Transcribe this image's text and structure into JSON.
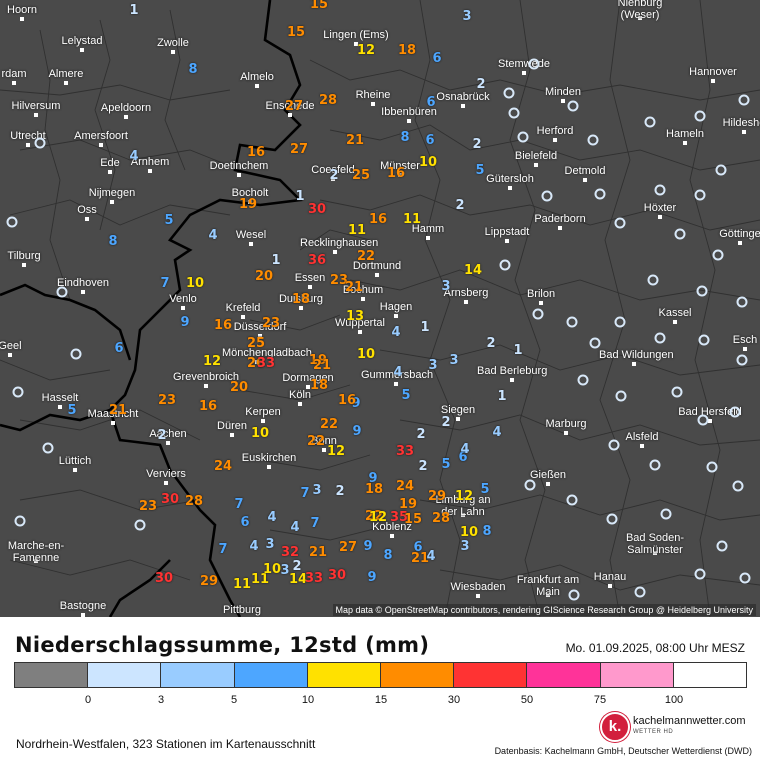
{
  "legend": {
    "title": "Niederschlagssumme, 12std (mm)",
    "date": "Mo. 01.09.2025, 08:00 Uhr MESZ",
    "thresholds": [
      "0",
      "3",
      "5",
      "10",
      "15",
      "30",
      "50",
      "75",
      "100"
    ],
    "colors": [
      "#7f7f7f",
      "#cce5ff",
      "#99ccff",
      "#4da6ff",
      "#ffe100",
      "#ff8c00",
      "#ff3333",
      "#ff3399",
      "#ff99cc",
      "#ffffff"
    ],
    "stations_text": "Nordrhein-Westfalen, 323 Stationen im Kartenausschnitt",
    "source_text": "Datenbasis: Kachelmann GmbH, Deutscher Wetterdienst (DWD)",
    "logo_name": "kachelmannwetter.com",
    "logo_sub": "WETTER HD",
    "logo_letter": "k."
  },
  "map": {
    "credit": "Map data © OpenStreetMap contributors, rendering GIScience Research Group @ Heidelberg University",
    "cities": [
      "Hoorn",
      "Lingen (Ems)",
      "Nienburg (Weser)",
      "Lelystad",
      "Zwolle",
      "Stemwede",
      "Hannover",
      "rdam",
      "Almere",
      "Almelo",
      "Rheine",
      "Osnabrück",
      "Minden",
      "Hilversum",
      "Apeldoorn",
      "Enschede",
      "Ibbenbüren",
      "Hildeshe",
      "Utrecht",
      "Amersfoort",
      "Herford",
      "Hameln",
      "Ede",
      "Arnhem",
      "Bielefeld",
      "Doetinchem",
      "Coesfeld",
      "Münster",
      "Gütersloh",
      "Detmold",
      "Nijmegen",
      "Bocholt",
      "Oss",
      "Paderborn",
      "Höxter",
      "Wesel",
      "Hamm",
      "Lippstadt",
      "Recklinghausen",
      "Göttinge",
      "Tilburg",
      "Dortmund",
      "Essen",
      "Eindhoven",
      "Bochum",
      "Arnsberg",
      "Brilon",
      "Kassel",
      "Venlo",
      "Krefeld",
      "Duisburg",
      "Hagen",
      "Wuppertal",
      "Düsseldorf",
      "Bad Wildungen",
      "Esch",
      "Geel",
      "Mönchengladbach",
      "Grevenbroich",
      "Dormagen",
      "Gummersbach",
      "Bad Berleburg",
      "Hasselt",
      "Maastricht",
      "Köln",
      "Kerpen",
      "Siegen",
      "Bad Hersfeld",
      "Düren",
      "Aachen",
      "Marburg",
      "Alsfeld",
      "Bonn",
      "Euskirchen",
      "Lüttich",
      "Verviers",
      "Gießen",
      "Limburg an der Lahn",
      "Koblenz",
      "Bad Soden-Salmünster",
      "Marche-en-Famenne",
      "Frankfurt am Main",
      "Hanau",
      "Wiesbaden",
      "Bastogne",
      "Pittburg"
    ],
    "precip_values": [
      1,
      15,
      3,
      15,
      12,
      18,
      6,
      8,
      27,
      28,
      6,
      2,
      21,
      8,
      6,
      2,
      4,
      16,
      27,
      2,
      25,
      16,
      10,
      5,
      1,
      30,
      19,
      2,
      16,
      11,
      5,
      8,
      4,
      11,
      22,
      14,
      1,
      20,
      36,
      18,
      23,
      7,
      10,
      21,
      13,
      3,
      9,
      16,
      23,
      25,
      26,
      19,
      4,
      1,
      6,
      12,
      33,
      21,
      10,
      2,
      1,
      3,
      3,
      20,
      18,
      4,
      23,
      16,
      5,
      5,
      21,
      1,
      9,
      22,
      16,
      10,
      2,
      22,
      12,
      9,
      2,
      33,
      2,
      4,
      2,
      24,
      5,
      6,
      4,
      9,
      23,
      30,
      28,
      7,
      7,
      3,
      2,
      24,
      29,
      18,
      19,
      12,
      5,
      6,
      4,
      4,
      7,
      22,
      12,
      35,
      15,
      28,
      8,
      10,
      7,
      4,
      3,
      32,
      21,
      27,
      9,
      8,
      6,
      4,
      3,
      21,
      30,
      29,
      11,
      11,
      10,
      3,
      2,
      14,
      33,
      30,
      9
    ]
  }
}
